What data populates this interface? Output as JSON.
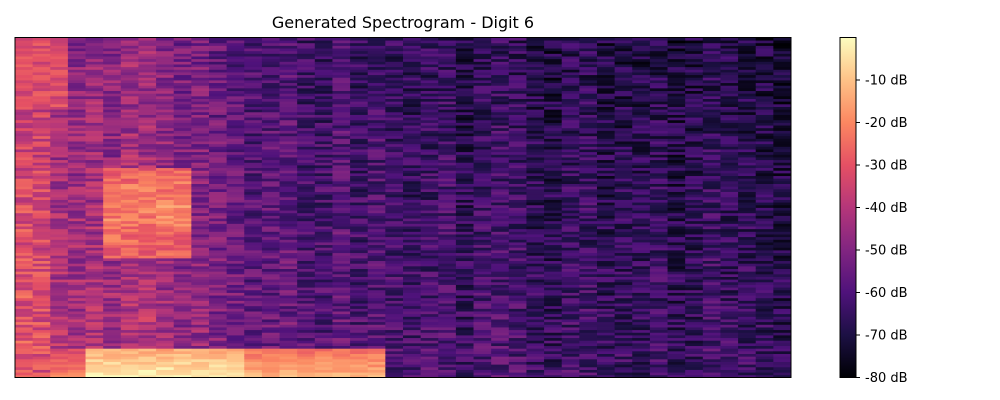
{
  "chart_data": {
    "type": "heatmap",
    "title": "Generated Spectrogram - Digit 6",
    "xlabel": "",
    "ylabel": "",
    "axes_ticks_visible": false,
    "n_time_frames": 44,
    "n_frequency_bins": 128,
    "value_range": [
      -80,
      0
    ],
    "colormap": "magma",
    "colorbar": {
      "ticks": [
        -10,
        -20,
        -30,
        -40,
        -50,
        -60,
        -70,
        -80
      ],
      "tick_labels": [
        "-10 dB",
        "-20 dB",
        "-30 dB",
        "-40 dB",
        "-50 dB",
        "-60 dB",
        "-70 dB",
        "-80 dB"
      ],
      "range": [
        -80,
        0
      ],
      "placement": "right"
    },
    "energy_profile": {
      "description_units": "dB",
      "frame_mean_db": [
        -30,
        -35,
        -42,
        -43,
        -45,
        -45,
        -44,
        -45,
        -48,
        -48,
        -50,
        -52,
        -54,
        -55,
        -56,
        -58,
        -58,
        -59,
        -60,
        -60,
        -60,
        -62,
        -63,
        -63,
        -63,
        -64,
        -64,
        -64,
        -64,
        -65,
        -65,
        -65,
        -65,
        -65,
        -65,
        -66,
        -66,
        -66,
        -66,
        -66,
        -67,
        -67,
        -67,
        -67
      ],
      "low_band_peak_db": -2,
      "low_band_peak_frames": [
        4,
        12
      ],
      "mid_band_peak_db": -20,
      "mid_band_peak_frames": [
        5,
        9
      ]
    }
  }
}
